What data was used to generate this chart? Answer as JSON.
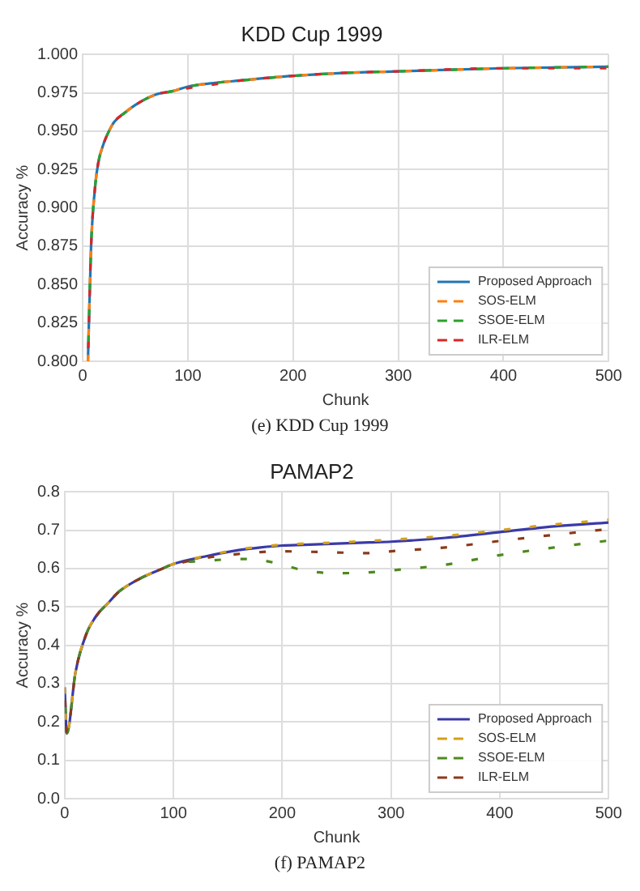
{
  "chart_data": [
    {
      "type": "line",
      "title": "KDD Cup 1999",
      "xlabel": "Chunk",
      "ylabel": "Accuracy %",
      "annotations": [
        "(e) KDD Cup 1999"
      ],
      "xlim": [
        0,
        500
      ],
      "xticks": [
        0,
        100,
        200,
        300,
        400,
        500
      ],
      "ylim": [
        0.8,
        1.0
      ],
      "yticks": [
        {
          "value": 0.8,
          "label": "0.800"
        },
        {
          "value": 0.825,
          "label": "0.825"
        },
        {
          "value": 0.85,
          "label": "0.850"
        },
        {
          "value": 0.875,
          "label": "0.875"
        },
        {
          "value": 0.9,
          "label": "0.900"
        },
        {
          "value": 0.925,
          "label": "0.925"
        },
        {
          "value": 0.95,
          "label": "0.950"
        },
        {
          "value": 0.975,
          "label": "0.975"
        },
        {
          "value": 1.0,
          "label": "1.000"
        }
      ],
      "grid": true,
      "legend": "bottom right",
      "marker": "none",
      "x": [
        5,
        8,
        12,
        15,
        20,
        25,
        30,
        40,
        50,
        60,
        70,
        85,
        100,
        120,
        150,
        200,
        250,
        300,
        400,
        500
      ],
      "series": [
        {
          "name": "Proposed Approach",
          "color": "#1f77b4",
          "line_style": "solid",
          "values": [
            0.8,
            0.875,
            0.915,
            0.93,
            0.942,
            0.95,
            0.956,
            0.962,
            0.967,
            0.971,
            0.974,
            0.976,
            0.979,
            0.981,
            0.983,
            0.986,
            0.988,
            0.989,
            0.991,
            0.992
          ]
        },
        {
          "name": "SOS-ELM",
          "color": "#ff7f0e",
          "line_style": "dashed",
          "values": [
            0.8,
            0.875,
            0.915,
            0.93,
            0.942,
            0.95,
            0.956,
            0.962,
            0.967,
            0.971,
            0.974,
            0.976,
            0.979,
            0.981,
            0.983,
            0.986,
            0.988,
            0.989,
            0.991,
            0.992
          ]
        },
        {
          "name": "SSOE-ELM",
          "color": "#2ca02c",
          "line_style": "dashed",
          "values": [
            0.8,
            0.875,
            0.915,
            0.93,
            0.942,
            0.95,
            0.956,
            0.962,
            0.967,
            0.971,
            0.974,
            0.976,
            0.979,
            0.981,
            0.983,
            0.986,
            0.988,
            0.989,
            0.991,
            0.992
          ]
        },
        {
          "name": "ILR-ELM",
          "color": "#d62728",
          "line_style": "dashed",
          "values": [
            0.8,
            0.875,
            0.915,
            0.93,
            0.942,
            0.95,
            0.956,
            0.962,
            0.967,
            0.971,
            0.974,
            0.976,
            0.978,
            0.98,
            0.983,
            0.986,
            0.988,
            0.989,
            0.991,
            0.991
          ]
        }
      ]
    },
    {
      "type": "line",
      "title": "PAMAP2",
      "xlabel": "Chunk",
      "ylabel": "Accuracy %",
      "annotations": [
        "(f) PAMAP2"
      ],
      "xlim": [
        0,
        500
      ],
      "xticks": [
        0,
        100,
        200,
        300,
        400,
        500
      ],
      "ylim": [
        0,
        0.8
      ],
      "yticks": [
        {
          "value": 0,
          "label": "0.0"
        },
        {
          "value": 0.1,
          "label": "0.1"
        },
        {
          "value": 0.2,
          "label": "0.2"
        },
        {
          "value": 0.3,
          "label": "0.3"
        },
        {
          "value": 0.4,
          "label": "0.4"
        },
        {
          "value": 0.5,
          "label": "0.5"
        },
        {
          "value": 0.6,
          "label": "0.6"
        },
        {
          "value": 0.7,
          "label": "0.7"
        },
        {
          "value": 0.8,
          "label": "0.8"
        }
      ],
      "grid": true,
      "legend": "bottom right",
      "marker": "none",
      "x": [
        0,
        2,
        10,
        20,
        30,
        40,
        50,
        70,
        90,
        100,
        130,
        160,
        180,
        200,
        220,
        250,
        280,
        300,
        350,
        400,
        450,
        500
      ],
      "series": [
        {
          "name": "Proposed Approach",
          "color": "#3a3aa8",
          "line_style": "solid",
          "values": [
            0.29,
            0.17,
            0.33,
            0.43,
            0.48,
            0.51,
            0.54,
            0.575,
            0.6,
            0.612,
            0.632,
            0.648,
            0.655,
            0.66,
            0.662,
            0.665,
            0.668,
            0.67,
            0.68,
            0.695,
            0.71,
            0.72
          ]
        },
        {
          "name": "SOS-ELM",
          "color": "#d4a017",
          "line_style": "dashed",
          "values": [
            0.29,
            0.17,
            0.33,
            0.43,
            0.48,
            0.51,
            0.54,
            0.575,
            0.6,
            0.612,
            0.633,
            0.65,
            0.657,
            0.662,
            0.665,
            0.668,
            0.672,
            0.675,
            0.685,
            0.7,
            0.715,
            0.727
          ]
        },
        {
          "name": "SSOE-ELM",
          "color": "#4e8a1e",
          "line_style": "dashed",
          "values": [
            0.29,
            0.17,
            0.33,
            0.43,
            0.48,
            0.51,
            0.54,
            0.575,
            0.6,
            0.612,
            0.62,
            0.625,
            0.622,
            0.61,
            0.595,
            0.588,
            0.59,
            0.595,
            0.61,
            0.635,
            0.655,
            0.673
          ]
        },
        {
          "name": "ILR-ELM",
          "color": "#8b3a1a",
          "line_style": "dashed",
          "values": [
            0.29,
            0.17,
            0.33,
            0.43,
            0.48,
            0.51,
            0.54,
            0.575,
            0.6,
            0.61,
            0.628,
            0.638,
            0.643,
            0.645,
            0.644,
            0.642,
            0.64,
            0.645,
            0.655,
            0.672,
            0.688,
            0.703
          ]
        }
      ]
    }
  ]
}
